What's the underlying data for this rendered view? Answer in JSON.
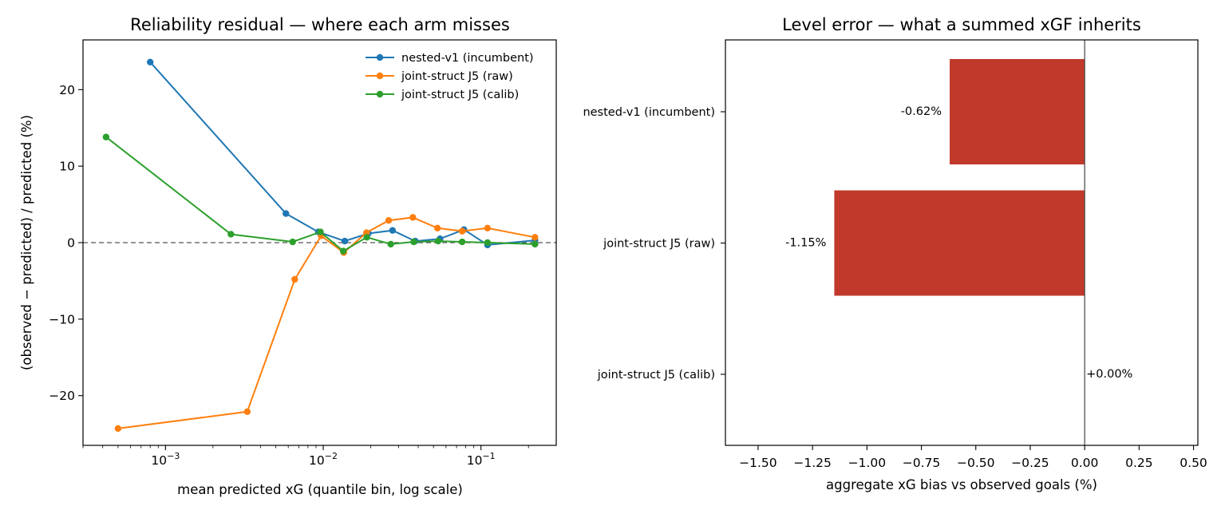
{
  "chart_data": [
    {
      "type": "line",
      "title": "Reliability residual — where each arm misses",
      "xlabel": "mean predicted xG (quantile bin, log scale)",
      "ylabel": "(observed − predicted) / predicted  (%)",
      "xscale": "log",
      "xlim": [
        0.0003,
        0.3
      ],
      "ylim": [
        -26.5,
        26.5
      ],
      "x_ticks": [
        {
          "value": 0.001,
          "base": "10",
          "exp": "−3"
        },
        {
          "value": 0.01,
          "base": "10",
          "exp": "−2"
        },
        {
          "value": 0.1,
          "base": "10",
          "exp": "−1"
        }
      ],
      "y_ticks": [
        {
          "value": 20,
          "label": "20"
        },
        {
          "value": 10,
          "label": "10"
        },
        {
          "value": 0,
          "label": "0"
        },
        {
          "value": -10,
          "label": "−10"
        },
        {
          "value": -20,
          "label": "−20"
        }
      ],
      "reference_line": 0,
      "legend_position": "top-right",
      "series": [
        {
          "name": "nested-v1 (incumbent)",
          "color": "#1f77b4",
          "x": [
            0.0008,
            0.0058,
            0.0093,
            0.0137,
            0.0193,
            0.0275,
            0.0383,
            0.055,
            0.078,
            0.11,
            0.22
          ],
          "y": [
            23.6,
            3.8,
            1.4,
            0.2,
            1.2,
            1.6,
            0.2,
            0.5,
            1.7,
            -0.3,
            0.3
          ]
        },
        {
          "name": "joint-struct J5 (raw)",
          "color": "#ff7f0e",
          "x": [
            0.0005,
            0.0033,
            0.0066,
            0.0097,
            0.0135,
            0.0188,
            0.026,
            0.037,
            0.053,
            0.076,
            0.11,
            0.22
          ],
          "y": [
            -24.3,
            -22.1,
            -4.8,
            0.9,
            -1.3,
            1.3,
            2.9,
            3.3,
            1.9,
            1.5,
            1.9,
            0.7
          ]
        },
        {
          "name": "joint-struct J5 (calib)",
          "color": "#2ca02c",
          "x": [
            0.00042,
            0.0026,
            0.0064,
            0.0096,
            0.0134,
            0.0189,
            0.0268,
            0.0375,
            0.0535,
            0.076,
            0.11,
            0.22
          ],
          "y": [
            13.8,
            1.1,
            0.1,
            1.4,
            -1.1,
            0.7,
            -0.2,
            0.1,
            0.2,
            0.1,
            0.0,
            -0.2
          ]
        }
      ]
    },
    {
      "type": "bar",
      "orientation": "horizontal",
      "title": "Level error — what a summed xGF inherits",
      "xlabel": "aggregate xG bias vs observed goals (%)",
      "ylabel": "",
      "xlim": [
        -1.65,
        0.52
      ],
      "x_ticks": [
        {
          "value": -1.5,
          "label": "−1.50"
        },
        {
          "value": -1.25,
          "label": "−1.25"
        },
        {
          "value": -1.0,
          "label": "−1.00"
        },
        {
          "value": -0.75,
          "label": "−0.75"
        },
        {
          "value": -0.5,
          "label": "−0.50"
        },
        {
          "value": -0.25,
          "label": "−0.25"
        },
        {
          "value": 0.0,
          "label": "0.00"
        },
        {
          "value": 0.25,
          "label": "0.25"
        },
        {
          "value": 0.5,
          "label": "0.50"
        }
      ],
      "bar_color": "#c0392b",
      "categories": [
        "nested-v1 (incumbent)",
        "joint-struct J5 (raw)",
        "joint-struct J5 (calib)"
      ],
      "values": [
        -0.62,
        -1.15,
        0.0
      ],
      "data_labels": [
        "-0.62%",
        "-1.15%",
        "+0.00%"
      ]
    }
  ]
}
